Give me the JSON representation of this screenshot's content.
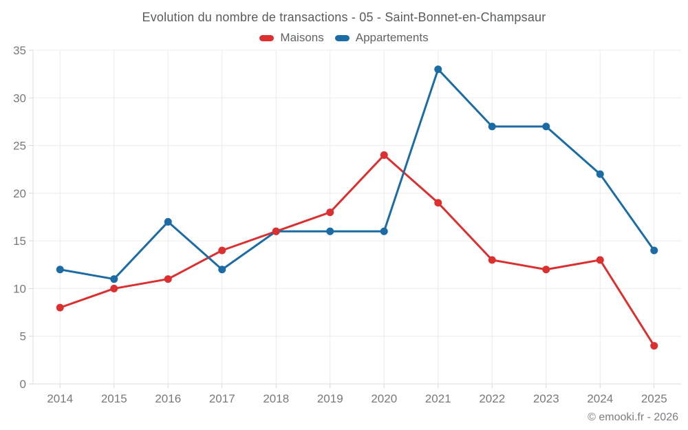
{
  "chart": {
    "title": "Evolution du nombre de transactions - 05 - Saint-Bonnet-en-Champsaur",
    "footer": "© emooki.fr - 2026"
  },
  "chart_data": {
    "type": "line",
    "title": "Evolution du nombre de transactions - 05 - Saint-Bonnet-en-Champsaur",
    "categories": [
      "2014",
      "2015",
      "2016",
      "2017",
      "2018",
      "2019",
      "2020",
      "2021",
      "2022",
      "2023",
      "2024",
      "2025"
    ],
    "series": [
      {
        "name": "Maisons",
        "color": "#dc3030",
        "values": [
          8,
          10,
          11,
          14,
          16,
          18,
          24,
          19,
          13,
          12,
          13,
          4
        ]
      },
      {
        "name": "Appartements",
        "color": "#1b6ba4",
        "values": [
          12,
          11,
          17,
          12,
          16,
          16,
          16,
          33,
          27,
          27,
          22,
          14
        ]
      }
    ],
    "xlabel": "",
    "ylabel": "",
    "ylim": [
      0,
      35
    ],
    "yticks": [
      0,
      5,
      10,
      15,
      20,
      25,
      30,
      35
    ],
    "grid": true,
    "legend_position": "top"
  },
  "theme": {
    "background": "#ffffff",
    "grid_color": "#ebebeb",
    "axis_color": "#dcdcdc",
    "tick_color": "#d6d6d6",
    "tick_label_color": "#77797c",
    "title_color": "#585b5e",
    "legend_text_color": "#5f6266"
  }
}
